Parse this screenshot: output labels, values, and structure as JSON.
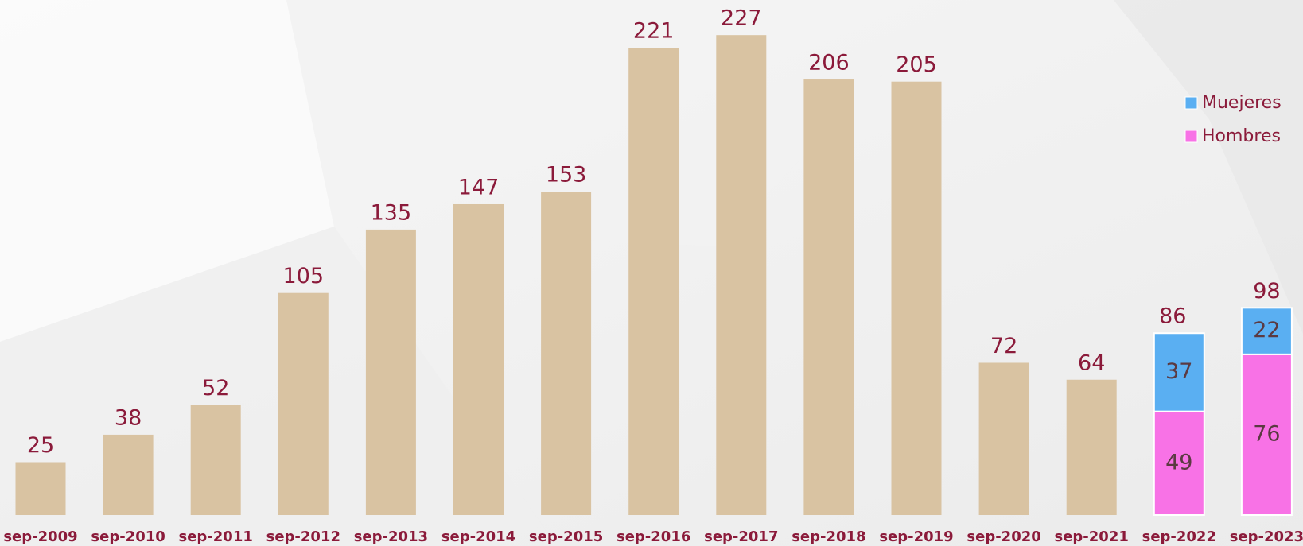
{
  "chart_data": {
    "type": "bar",
    "stacked": true,
    "categories": [
      "sep-2009",
      "sep-2010",
      "sep-2011",
      "sep-2012",
      "sep-2013",
      "sep-2014",
      "sep-2015",
      "sep-2016",
      "sep-2017",
      "sep-2018",
      "sep-2019",
      "sep-2020",
      "sep-2021",
      "sep-2022",
      "sep-2023"
    ],
    "series": [
      {
        "color": "#d9c3a2",
        "values": [
          25,
          38,
          52,
          105,
          135,
          147,
          153,
          221,
          227,
          206,
          205,
          72,
          64,
          null,
          null
        ]
      },
      {
        "name": "Hombres",
        "color": "#f872e6",
        "values": [
          null,
          null,
          null,
          null,
          null,
          null,
          null,
          null,
          null,
          null,
          null,
          null,
          null,
          49,
          76
        ]
      },
      {
        "name": "Muejeres",
        "color": "#5aaff2",
        "values": [
          null,
          null,
          null,
          null,
          null,
          null,
          null,
          null,
          null,
          null,
          null,
          null,
          null,
          37,
          22
        ]
      }
    ],
    "totals": [
      null,
      null,
      null,
      null,
      null,
      null,
      null,
      null,
      null,
      null,
      null,
      null,
      null,
      86,
      98
    ],
    "legend": "upper right"
  }
}
